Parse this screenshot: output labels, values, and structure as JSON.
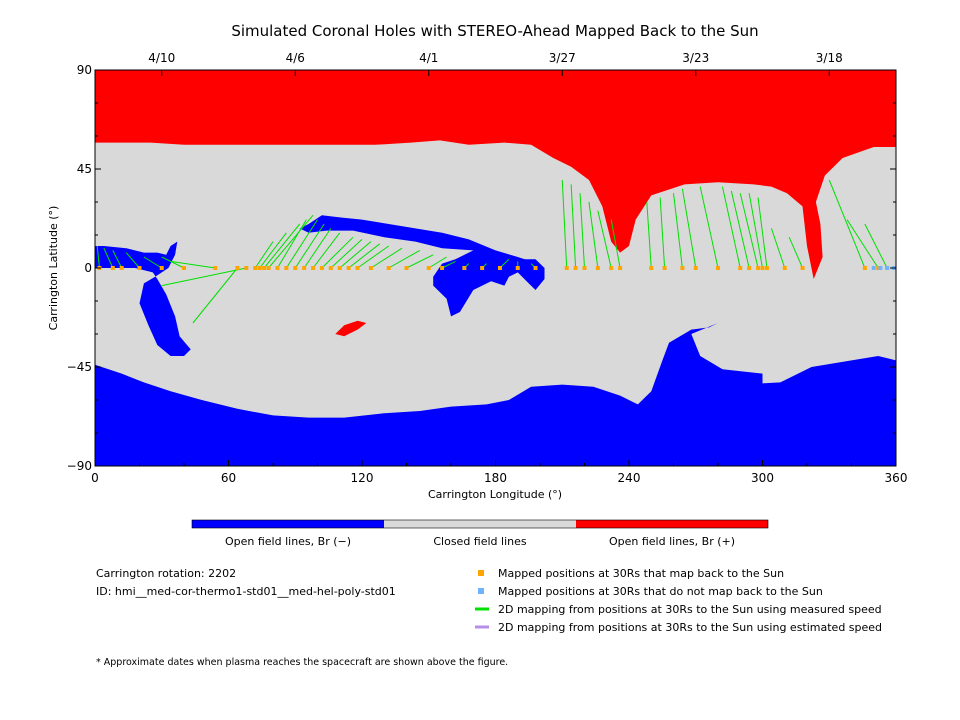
{
  "chart_data": {
    "type": "map",
    "title": "Simulated Coronal Holes with STEREO-Ahead Mapped Back to the Sun",
    "xlabel": "Carrington Longitude (°)",
    "ylabel": "Carrington Latitude (°)",
    "xlim": [
      0,
      360
    ],
    "ylim": [
      -90,
      90
    ],
    "x_ticks": [
      "0",
      "60",
      "120",
      "180",
      "240",
      "300",
      "360"
    ],
    "y_ticks": [
      "90",
      "45",
      "0",
      "−45",
      "−90"
    ],
    "date_ticks": [
      {
        "label": "4/10",
        "lon": 30
      },
      {
        "label": "4/6",
        "lon": 90
      },
      {
        "label": "4/1",
        "lon": 150
      },
      {
        "label": "3/27",
        "lon": 210
      },
      {
        "label": "3/23",
        "lon": 270
      },
      {
        "label": "3/18",
        "lon": 330
      }
    ],
    "colorbar": [
      {
        "label": "Open field lines, Br (−)",
        "color": "#0000ff"
      },
      {
        "label": "Closed field lines",
        "color": "#d9d9d9"
      },
      {
        "label": "Open field lines, Br (+)",
        "color": "#ff0000"
      }
    ],
    "regions": {
      "positive_open": [
        [
          0,
          90
        ],
        [
          360,
          90
        ],
        [
          360,
          55
        ],
        [
          350,
          55
        ],
        [
          336,
          50
        ],
        [
          328,
          42
        ],
        [
          324,
          30
        ],
        [
          326,
          20
        ],
        [
          327,
          5
        ],
        [
          323,
          -5
        ],
        [
          320,
          10
        ],
        [
          318,
          28
        ],
        [
          311,
          34
        ],
        [
          304,
          37
        ],
        [
          296,
          38
        ],
        [
          280,
          39
        ],
        [
          265,
          38
        ],
        [
          250,
          33
        ],
        [
          243,
          22
        ],
        [
          240,
          10
        ],
        [
          236,
          7
        ],
        [
          232,
          12
        ],
        [
          228,
          28
        ],
        [
          222,
          40
        ],
        [
          214,
          46
        ],
        [
          206,
          50
        ],
        [
          196,
          56
        ],
        [
          184,
          57
        ],
        [
          168,
          56
        ],
        [
          155,
          58
        ],
        [
          142,
          57
        ],
        [
          126,
          56
        ],
        [
          112,
          56
        ],
        [
          96,
          56
        ],
        [
          75,
          56
        ],
        [
          58,
          56
        ],
        [
          40,
          56
        ],
        [
          25,
          57
        ],
        [
          0,
          57
        ]
      ],
      "negative_open_south": [
        [
          0,
          -90
        ],
        [
          360,
          -90
        ],
        [
          360,
          -42
        ],
        [
          352,
          -40
        ],
        [
          340,
          -42
        ],
        [
          322,
          -45
        ],
        [
          308,
          -52
        ],
        [
          290,
          -53
        ],
        [
          278,
          -52
        ],
        [
          276,
          -48
        ],
        [
          268,
          -44
        ],
        [
          266,
          -48
        ],
        [
          272,
          -54
        ],
        [
          290,
          -56
        ],
        [
          300,
          -56
        ],
        [
          300,
          -48
        ],
        [
          282,
          -46
        ],
        [
          272,
          -40
        ],
        [
          268,
          -30
        ],
        [
          280,
          -25
        ],
        [
          276,
          -27
        ],
        [
          268,
          -28
        ],
        [
          258,
          -34
        ],
        [
          255,
          -42
        ],
        [
          250,
          -56
        ],
        [
          244,
          -62
        ],
        [
          236,
          -58
        ],
        [
          224,
          -54
        ],
        [
          210,
          -53
        ],
        [
          196,
          -54
        ],
        [
          186,
          -60
        ],
        [
          176,
          -62
        ],
        [
          160,
          -63
        ],
        [
          146,
          -65
        ],
        [
          130,
          -66
        ],
        [
          112,
          -68
        ],
        [
          96,
          -68
        ],
        [
          80,
          -67
        ],
        [
          64,
          -64
        ],
        [
          48,
          -60
        ],
        [
          34,
          -56
        ],
        [
          22,
          -52
        ],
        [
          12,
          -48
        ],
        [
          0,
          -44
        ]
      ],
      "negative_open_north": [
        [
          0,
          10
        ],
        [
          4,
          10
        ],
        [
          14,
          9
        ],
        [
          22,
          7
        ],
        [
          28,
          7
        ],
        [
          32,
          6
        ],
        [
          34,
          10
        ],
        [
          37,
          12
        ],
        [
          36,
          6
        ],
        [
          33,
          0
        ],
        [
          27,
          -4
        ],
        [
          22,
          -7
        ],
        [
          20,
          -16
        ],
        [
          24,
          -26
        ],
        [
          28,
          -35
        ],
        [
          34,
          -40
        ],
        [
          40,
          -40
        ],
        [
          43,
          -37
        ],
        [
          38,
          -31
        ],
        [
          36,
          -22
        ],
        [
          32,
          -12
        ],
        [
          28,
          -5
        ],
        [
          26,
          -2
        ],
        [
          18,
          0
        ],
        [
          6,
          0
        ],
        [
          0,
          0
        ]
      ],
      "negative_open_band": [
        [
          96,
          20
        ],
        [
          102,
          24
        ],
        [
          110,
          23
        ],
        [
          120,
          22
        ],
        [
          132,
          20
        ],
        [
          144,
          18
        ],
        [
          156,
          16
        ],
        [
          168,
          13
        ],
        [
          180,
          8
        ],
        [
          190,
          5
        ],
        [
          196,
          3
        ],
        [
          202,
          0
        ],
        [
          202,
          -5
        ],
        [
          198,
          -10
        ],
        [
          194,
          -6
        ],
        [
          190,
          -2
        ],
        [
          186,
          -4
        ],
        [
          184,
          -8
        ],
        [
          178,
          -6
        ],
        [
          170,
          -10
        ],
        [
          164,
          -20
        ],
        [
          160,
          -22
        ],
        [
          158,
          -14
        ],
        [
          152,
          -8
        ],
        [
          152,
          -4
        ],
        [
          156,
          2
        ],
        [
          162,
          4
        ],
        [
          170,
          8
        ],
        [
          156,
          9
        ],
        [
          144,
          12
        ],
        [
          130,
          14
        ],
        [
          116,
          17
        ],
        [
          104,
          17
        ],
        [
          96,
          16
        ],
        [
          92,
          18
        ]
      ],
      "negative_open_patch": [
        [
          192,
          4
        ],
        [
          198,
          4
        ],
        [
          202,
          0
        ],
        [
          198,
          -4
        ],
        [
          194,
          -2
        ]
      ],
      "positive_open_patch": [
        [
          108,
          -30
        ],
        [
          112,
          -26
        ],
        [
          118,
          -24
        ],
        [
          122,
          -25
        ],
        [
          118,
          -28
        ],
        [
          112,
          -31
        ]
      ]
    },
    "mapped_positions": [
      {
        "sun_lon": 1,
        "sun_lat": 10,
        "orbit_lon": 2
      },
      {
        "sun_lon": 4,
        "sun_lat": 9,
        "orbit_lon": 8
      },
      {
        "sun_lon": 8,
        "sun_lat": 8,
        "orbit_lon": 12
      },
      {
        "sun_lon": 14,
        "sun_lat": 7,
        "orbit_lon": 20
      },
      {
        "sun_lon": 22,
        "sun_lat": 5,
        "orbit_lon": 30
      },
      {
        "sun_lon": 30,
        "sun_lat": 5,
        "orbit_lon": 40
      },
      {
        "sun_lon": 34,
        "sun_lat": 3,
        "orbit_lon": 54
      },
      {
        "sun_lon": 30,
        "sun_lat": -8,
        "orbit_lon": 68
      },
      {
        "sun_lon": 44,
        "sun_lat": -25,
        "orbit_lon": 64
      },
      {
        "sun_lon": 80,
        "sun_lat": 12,
        "orbit_lon": 72
      },
      {
        "sun_lon": 86,
        "sun_lat": 16,
        "orbit_lon": 74
      },
      {
        "sun_lon": 92,
        "sun_lat": 20,
        "orbit_lon": 76
      },
      {
        "sun_lon": 98,
        "sun_lat": 24,
        "orbit_lon": 78
      },
      {
        "sun_lon": 95,
        "sun_lat": 22,
        "orbit_lon": 82
      },
      {
        "sun_lon": 100,
        "sun_lat": 22,
        "orbit_lon": 86
      },
      {
        "sun_lon": 103,
        "sun_lat": 20,
        "orbit_lon": 90
      },
      {
        "sun_lon": 106,
        "sun_lat": 18,
        "orbit_lon": 94
      },
      {
        "sun_lon": 110,
        "sun_lat": 16,
        "orbit_lon": 98
      },
      {
        "sun_lon": 116,
        "sun_lat": 14,
        "orbit_lon": 102
      },
      {
        "sun_lon": 120,
        "sun_lat": 13,
        "orbit_lon": 106
      },
      {
        "sun_lon": 124,
        "sun_lat": 12,
        "orbit_lon": 110
      },
      {
        "sun_lon": 128,
        "sun_lat": 11,
        "orbit_lon": 114
      },
      {
        "sun_lon": 132,
        "sun_lat": 10,
        "orbit_lon": 118
      },
      {
        "sun_lon": 138,
        "sun_lat": 9,
        "orbit_lon": 124
      },
      {
        "sun_lon": 146,
        "sun_lat": 8,
        "orbit_lon": 132
      },
      {
        "sun_lon": 152,
        "sun_lat": 6,
        "orbit_lon": 140
      },
      {
        "sun_lon": 158,
        "sun_lat": 5,
        "orbit_lon": 150
      },
      {
        "sun_lon": 162,
        "sun_lat": 3,
        "orbit_lon": 156
      },
      {
        "sun_lon": 168,
        "sun_lat": 2,
        "orbit_lon": 166
      },
      {
        "sun_lon": 176,
        "sun_lat": 2,
        "orbit_lon": 174
      },
      {
        "sun_lon": 186,
        "sun_lat": 4,
        "orbit_lon": 182
      },
      {
        "sun_lon": 190,
        "sun_lat": 3,
        "orbit_lon": 190
      },
      {
        "sun_lon": 196,
        "sun_lat": 2,
        "orbit_lon": 198
      },
      {
        "sun_lon": 210,
        "sun_lat": 40,
        "orbit_lon": 212
      },
      {
        "sun_lon": 214,
        "sun_lat": 38,
        "orbit_lon": 216
      },
      {
        "sun_lon": 218,
        "sun_lat": 34,
        "orbit_lon": 220
      },
      {
        "sun_lon": 222,
        "sun_lat": 30,
        "orbit_lon": 226
      },
      {
        "sun_lon": 226,
        "sun_lat": 26,
        "orbit_lon": 232
      },
      {
        "sun_lon": 232,
        "sun_lat": 22,
        "orbit_lon": 236
      },
      {
        "sun_lon": 248,
        "sun_lat": 30,
        "orbit_lon": 250
      },
      {
        "sun_lon": 254,
        "sun_lat": 32,
        "orbit_lon": 256
      },
      {
        "sun_lon": 260,
        "sun_lat": 34,
        "orbit_lon": 264
      },
      {
        "sun_lon": 264,
        "sun_lat": 36,
        "orbit_lon": 270
      },
      {
        "sun_lon": 272,
        "sun_lat": 37,
        "orbit_lon": 280
      },
      {
        "sun_lon": 282,
        "sun_lat": 37,
        "orbit_lon": 290
      },
      {
        "sun_lon": 286,
        "sun_lat": 35,
        "orbit_lon": 294
      },
      {
        "sun_lon": 290,
        "sun_lat": 34,
        "orbit_lon": 298
      },
      {
        "sun_lon": 294,
        "sun_lat": 34,
        "orbit_lon": 300
      },
      {
        "sun_lon": 298,
        "sun_lat": 32,
        "orbit_lon": 302
      },
      {
        "sun_lon": 304,
        "sun_lat": 18,
        "orbit_lon": 310
      },
      {
        "sun_lon": 312,
        "sun_lat": 14,
        "orbit_lon": 318
      },
      {
        "sun_lon": 330,
        "sun_lat": 40,
        "orbit_lon": 346
      },
      {
        "sun_lon": 338,
        "sun_lat": 22,
        "orbit_lon": 352
      },
      {
        "sun_lon": 346,
        "sun_lat": 20,
        "orbit_lon": 356
      }
    ],
    "unmapped_positions": [
      350,
      353,
      356,
      359
    ]
  },
  "legend": {
    "rotation": "Carrington rotation: 2202",
    "id": "ID: hmi__med-cor-thermo1-std01__med-hel-poly-std01",
    "items": [
      {
        "label": "Mapped positions at 30Rs that map back to the Sun",
        "color": "#ffa500",
        "kind": "square"
      },
      {
        "label": "Mapped positions at 30Rs that do not map back to the Sun",
        "color": "#6fb3ff",
        "kind": "square"
      },
      {
        "label": "2D mapping from positions at 30Rs to the Sun using measured speed",
        "color": "#00e000",
        "kind": "line"
      },
      {
        "label": "2D mapping from positions at 30Rs to the Sun using estimated speed",
        "color": "#b98ee8",
        "kind": "line"
      }
    ],
    "footnote": "* Approximate dates when plasma reaches the spacecraft are shown above the figure."
  }
}
